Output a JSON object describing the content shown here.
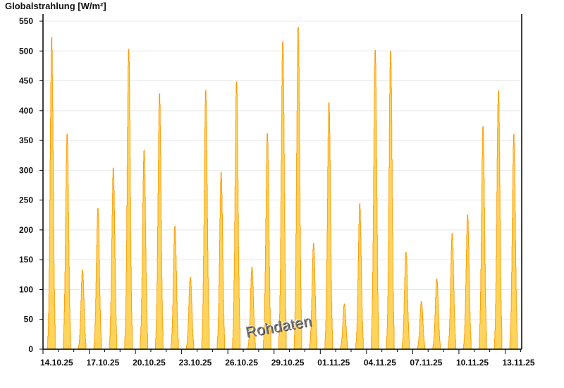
{
  "chart_data": {
    "type": "area",
    "title": "",
    "ylabel": "Globalstrahlung [W/m²]",
    "xlabel": "",
    "ylim": [
      0,
      550
    ],
    "yticks": [
      0,
      50,
      100,
      150,
      200,
      250,
      300,
      350,
      400,
      450,
      500,
      550
    ],
    "xtick_labels": [
      "14.10.25",
      "17.10.25",
      "20.10.25",
      "23.10.25",
      "26.10.25",
      "29.10.25",
      "01.11.25",
      "04.11.25",
      "07.11.25",
      "10.11.25",
      "13.11.25"
    ],
    "grid": "horizontal",
    "series": [
      {
        "x": [
          "14.10.25",
          "15.10.25",
          "16.10.25",
          "17.10.25",
          "18.10.25",
          "19.10.25",
          "20.10.25",
          "21.10.25",
          "22.10.25",
          "23.10.25",
          "24.10.25",
          "25.10.25",
          "26.10.25",
          "27.10.25",
          "28.10.25",
          "29.10.25",
          "30.10.25",
          "31.10.25",
          "01.11.25",
          "02.11.25",
          "03.11.25",
          "04.11.25",
          "05.11.25",
          "06.11.25",
          "07.11.25",
          "08.11.25",
          "09.11.25",
          "10.11.25",
          "11.11.25",
          "12.11.25",
          "13.11.25"
        ],
        "daily_peak": [
          525,
          362,
          133,
          237,
          305,
          505,
          335,
          430,
          207,
          121,
          436,
          298,
          450,
          138,
          363,
          518,
          542,
          178,
          415,
          76,
          245,
          503,
          502,
          163,
          80,
          118,
          195,
          226,
          375,
          435,
          362
        ]
      }
    ],
    "colors": {
      "fill": "#ffd45a",
      "line": "#ff9900",
      "grid": "#e8e8e8",
      "axis": "#000000"
    },
    "watermark": "Rohdaten"
  }
}
